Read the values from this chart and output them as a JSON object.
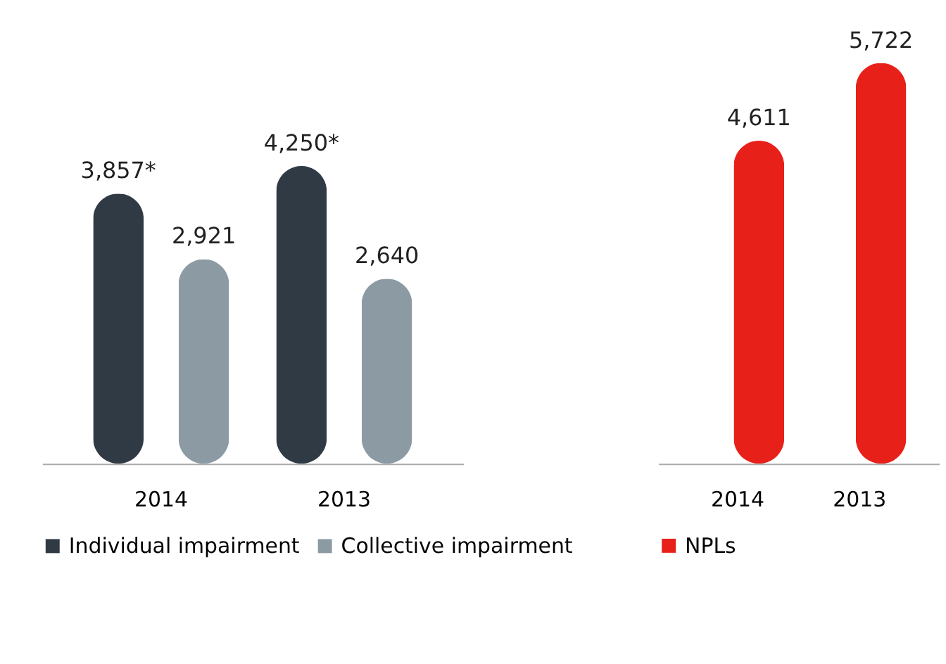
{
  "chart_data": [
    {
      "type": "bar",
      "categories": [
        "2014",
        "2013"
      ],
      "legend": "bottom",
      "grid": false,
      "tick_labels": "x",
      "series": [
        {
          "name": "Individual impairment",
          "color": "#2f3a44",
          "values": [
            3857,
            4250
          ],
          "value_labels": [
            "3,857*",
            "4,250*"
          ]
        },
        {
          "name": "Collective impairment",
          "color": "#8c9aa3",
          "values": [
            2921,
            2640
          ],
          "value_labels": [
            "2,921",
            "2,640"
          ]
        }
      ]
    },
    {
      "type": "bar",
      "categories": [
        "2014",
        "2013"
      ],
      "legend": "bottom",
      "grid": false,
      "tick_labels": "x",
      "series": [
        {
          "name": "NPLs",
          "color": "#e8201a",
          "values": [
            4611,
            5722
          ],
          "value_labels": [
            "4,611",
            "5,722"
          ]
        }
      ]
    }
  ]
}
